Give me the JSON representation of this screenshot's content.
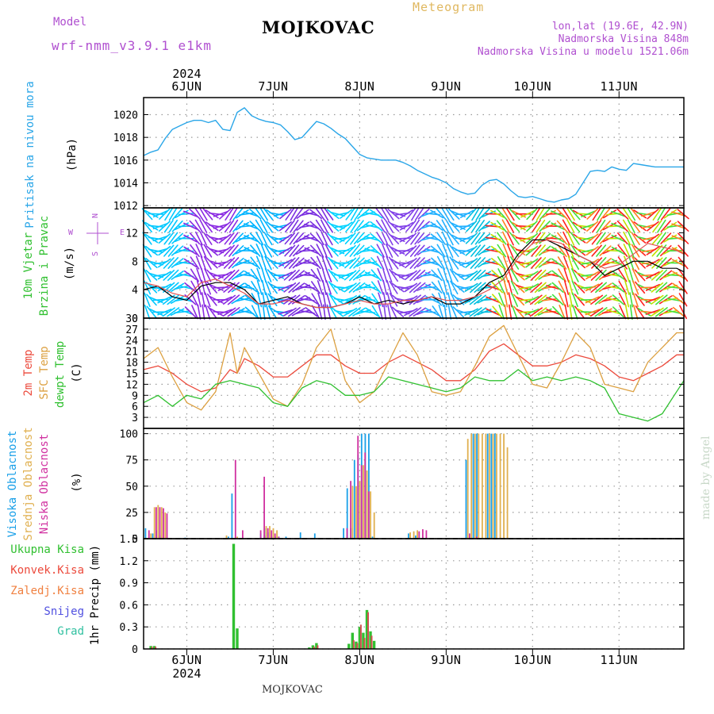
{
  "header": {
    "model_label": "Model",
    "model_name": "wrf-nmm_v3.9.1  e1km",
    "title": "MOJKOVAC",
    "meteogram_label": "Meteogram",
    "lonlat": "lon,lat (19.6E, 42.9N)",
    "elevation": "Nadmorska Visina 848m",
    "model_elevation": "Nadmorska Visina u modelu 1521.06m"
  },
  "footer": {
    "place": "MOJKOVAC",
    "watermark": "made by Angel"
  },
  "time_axis": {
    "year": "2024",
    "days": [
      "6JUN",
      "7JUN",
      "8JUN",
      "9JUN",
      "10JUN",
      "11JUN"
    ],
    "hours_per_day": 24,
    "range_hours": [
      -12,
      138
    ]
  },
  "chart_data": [
    {
      "id": "pressure",
      "type": "line",
      "ylabel_title": "Pritisak na nivou mora",
      "unit": "(hPa)",
      "ylim": [
        1011.8,
        1021.5
      ],
      "yticks": [
        1012,
        1014,
        1016,
        1018,
        1020
      ],
      "grid": true,
      "series": [
        {
          "color": "#2aa6e8",
          "x": [
            -12,
            -10,
            -8,
            -6,
            -4,
            -2,
            0,
            2,
            4,
            6,
            8,
            10,
            12,
            14,
            16,
            18,
            20,
            22,
            24,
            26,
            28,
            30,
            32,
            34,
            36,
            38,
            40,
            42,
            44,
            46,
            48,
            50,
            52,
            54,
            56,
            58,
            60,
            62,
            64,
            66,
            68,
            70,
            72,
            74,
            76,
            78,
            80,
            82,
            84,
            86,
            88,
            90,
            92,
            94,
            96,
            98,
            100,
            102,
            104,
            106,
            108,
            110,
            112,
            114,
            116,
            118,
            120,
            122,
            124,
            126,
            128,
            130,
            132,
            134,
            136,
            138
          ],
          "y": [
            1016.4,
            1016.7,
            1016.9,
            1017.9,
            1018.7,
            1019.0,
            1019.3,
            1019.5,
            1019.5,
            1019.3,
            1019.5,
            1018.7,
            1018.6,
            1020.2,
            1020.6,
            1019.9,
            1019.6,
            1019.4,
            1019.3,
            1019.1,
            1018.5,
            1017.8,
            1018.0,
            1018.7,
            1019.4,
            1019.2,
            1018.8,
            1018.3,
            1017.9,
            1017.2,
            1016.5,
            1016.2,
            1016.1,
            1016.0,
            1016.0,
            1016.0,
            1015.8,
            1015.5,
            1015.1,
            1014.8,
            1014.5,
            1014.3,
            1014.0,
            1013.5,
            1013.2,
            1013.0,
            1013.1,
            1013.8,
            1014.2,
            1014.3,
            1013.9,
            1013.3,
            1012.8,
            1012.7,
            1012.8,
            1012.6,
            1012.4,
            1012.3,
            1012.5,
            1012.6,
            1013.0,
            1014.0,
            1015.0,
            1015.1,
            1015.0,
            1015.4,
            1015.2,
            1015.1,
            1015.7,
            1015.6,
            1015.5,
            1015.4,
            1015.4,
            1015.4,
            1015.4,
            1015.4
          ]
        }
      ]
    },
    {
      "id": "wind",
      "type": "line",
      "ylabel_title": "10m Vjetar",
      "ylabel_title2": "Brzina i Pravac",
      "unit": "(m/s)",
      "compass_ns": "N",
      "compass_s": "S",
      "compass_w": "W",
      "compass_e": "E",
      "ylim": [
        0,
        15.5
      ],
      "yticks": [
        0,
        4,
        8,
        12
      ],
      "grid": true,
      "series": [
        {
          "name": "speed",
          "color": "#000000",
          "x": [
            -12,
            -8,
            -4,
            0,
            4,
            8,
            12,
            16,
            20,
            24,
            28,
            32,
            36,
            40,
            44,
            48,
            52,
            56,
            60,
            64,
            68,
            72,
            76,
            80,
            84,
            88,
            92,
            96,
            100,
            104,
            108,
            112,
            116,
            120,
            124,
            128,
            132,
            136,
            138
          ],
          "y": [
            4.0,
            4.5,
            3.0,
            2.5,
            4.5,
            5.0,
            5.0,
            4.0,
            2.0,
            2.5,
            3.0,
            2.0,
            1.5,
            1.5,
            2.0,
            3.0,
            2.0,
            2.5,
            2.0,
            2.5,
            3.0,
            2.0,
            2.0,
            3.0,
            5.0,
            6.0,
            9.0,
            11.0,
            11.0,
            10.0,
            9.0,
            8.0,
            6.0,
            7.0,
            8.0,
            8.0,
            7.0,
            7.0,
            6.5
          ]
        },
        {
          "name": "gust",
          "color": "#e05050",
          "x": [
            -12,
            -8,
            -4,
            0,
            4,
            8,
            12,
            16,
            20,
            24,
            28,
            32,
            36,
            40,
            44,
            48,
            52,
            56,
            60,
            64,
            68,
            72,
            76,
            80,
            84,
            88,
            92,
            96,
            100,
            104,
            108,
            112,
            116,
            120,
            124,
            128,
            132,
            136,
            138
          ],
          "y": [
            5.0,
            4.5,
            3.5,
            3.0,
            5.0,
            5.5,
            4.5,
            3.5,
            2.0,
            2.0,
            2.5,
            2.0,
            1.5,
            1.5,
            2.0,
            2.5,
            2.0,
            2.0,
            2.5,
            2.5,
            3.0,
            2.5,
            2.5,
            3.0,
            4.0,
            5.5,
            8.5,
            10.5,
            11.0,
            10.5,
            9.0,
            8.0,
            7.0,
            7.5,
            9.0,
            10.5,
            10.0,
            9.5,
            9.0
          ]
        }
      ],
      "barb_spectrum": [
        "#00c8ff",
        "#8a2be2",
        "#00b4ff",
        "#7a30e0",
        "#00d2ff",
        "#8040e8",
        "#20b0ff",
        "#00c0e0",
        "#ff8020",
        "#ff2020",
        "#c0e000",
        "#40e040"
      ]
    },
    {
      "id": "temperature",
      "type": "line",
      "ylabel_t2m": "2m Temp",
      "ylabel_sfc": "SFC Temp",
      "ylabel_dew": "dewpt Temp",
      "unit": "(C)",
      "ylim": [
        0,
        30
      ],
      "yticks": [
        3,
        6,
        9,
        12,
        15,
        18,
        21,
        24,
        27,
        30
      ],
      "grid": true,
      "series": [
        {
          "name": "2m Temp",
          "color": "#ec4a3c",
          "x": [
            -12,
            -8,
            -4,
            0,
            4,
            8,
            12,
            14,
            16,
            20,
            24,
            28,
            32,
            36,
            40,
            44,
            48,
            52,
            56,
            60,
            64,
            68,
            72,
            76,
            80,
            84,
            88,
            92,
            96,
            100,
            104,
            108,
            112,
            116,
            120,
            124,
            128,
            132,
            136,
            138
          ],
          "y": [
            16,
            17,
            15,
            12,
            10,
            11,
            16,
            15,
            19,
            17,
            14,
            14,
            17,
            20,
            20,
            17,
            15,
            15,
            18,
            20,
            18,
            16,
            13,
            13,
            16,
            21,
            23,
            20,
            17,
            17,
            18,
            20,
            19,
            17,
            14,
            13,
            15,
            17,
            20,
            20
          ]
        },
        {
          "name": "SFC Temp",
          "color": "#dca040",
          "x": [
            -12,
            -8,
            -4,
            0,
            4,
            8,
            12,
            14,
            16,
            20,
            24,
            28,
            32,
            36,
            40,
            44,
            48,
            52,
            56,
            60,
            64,
            68,
            72,
            76,
            80,
            84,
            88,
            92,
            96,
            100,
            104,
            108,
            112,
            116,
            120,
            124,
            128,
            132,
            136,
            138
          ],
          "y": [
            19,
            22,
            14,
            7,
            5,
            10,
            26,
            15,
            22,
            15,
            8,
            6,
            12,
            22,
            27,
            13,
            7,
            10,
            18,
            26,
            20,
            10,
            9,
            10,
            17,
            25,
            28,
            20,
            12,
            11,
            18,
            26,
            22,
            12,
            11,
            10,
            18,
            22,
            26,
            26
          ]
        },
        {
          "name": "dewpt Temp",
          "color": "#30c030",
          "x": [
            -12,
            -8,
            -4,
            0,
            4,
            8,
            12,
            16,
            20,
            24,
            28,
            32,
            36,
            40,
            44,
            48,
            52,
            56,
            60,
            64,
            68,
            72,
            76,
            80,
            84,
            88,
            92,
            96,
            100,
            104,
            108,
            112,
            116,
            120,
            124,
            128,
            132,
            136,
            138
          ],
          "y": [
            7,
            9,
            6,
            9,
            8,
            12,
            13,
            12,
            11,
            7,
            6,
            11,
            13,
            12,
            9,
            9,
            10,
            14,
            13,
            12,
            11,
            10,
            11,
            14,
            13,
            13,
            16,
            13,
            14,
            13,
            14,
            13,
            11,
            4,
            3,
            2,
            4,
            10,
            13
          ]
        }
      ]
    },
    {
      "id": "clouds",
      "type": "bar",
      "ylabel_high": "Visoka Oblacnost",
      "ylabel_mid": "Srednja Oblacnost",
      "ylabel_low": "Niska Oblacnost",
      "unit": "(%)",
      "ylim": [
        0,
        105
      ],
      "yticks": [
        0,
        25,
        50,
        75,
        100
      ],
      "grid": true,
      "series": [
        {
          "name": "Visoka Oblacnost",
          "color": "#1aa0e8",
          "x": [
            -11,
            -9,
            -8,
            -7,
            0,
            12,
            13,
            21,
            22,
            22,
            22,
            23,
            24,
            25,
            26,
            28,
            32,
            36,
            44,
            45,
            46,
            47,
            48,
            49,
            50,
            51,
            52,
            62,
            64,
            78,
            80,
            81,
            84,
            85,
            86
          ],
          "y": [
            10,
            5,
            8,
            3,
            1,
            2,
            43,
            5,
            10,
            2,
            3,
            6,
            2,
            2,
            2,
            2,
            6,
            5,
            10,
            48,
            10,
            75,
            80,
            100,
            100,
            100,
            2,
            5,
            3,
            75,
            100,
            100,
            100,
            100,
            100
          ]
        },
        {
          "name": "Srednja Oblacnost",
          "color": "#e0b050",
          "x": [
            -10,
            -9,
            -8,
            -7,
            -6,
            11,
            14,
            22,
            23,
            24,
            25,
            46,
            47,
            48,
            49,
            50,
            51,
            52,
            62,
            63,
            64,
            78,
            79,
            80,
            81,
            82,
            83,
            84,
            85,
            86,
            87,
            88,
            89
          ],
          "y": [
            5,
            30,
            32,
            30,
            25,
            3,
            2,
            12,
            12,
            10,
            8,
            50,
            50,
            55,
            70,
            65,
            45,
            25,
            6,
            7,
            8,
            95,
            100,
            100,
            100,
            100,
            100,
            100,
            100,
            100,
            100,
            100,
            87
          ]
        },
        {
          "name": "Niska Oblacnost",
          "color": "#d030a0",
          "x": [
            -11,
            -9,
            -8,
            -7,
            -6,
            13,
            15,
            20,
            21,
            22,
            23,
            24,
            25,
            44,
            45,
            47,
            48,
            49,
            50,
            64,
            65,
            66,
            78,
            80
          ],
          "y": [
            8,
            30,
            30,
            29,
            24,
            75,
            8,
            8,
            59,
            10,
            8,
            5,
            2,
            10,
            55,
            98,
            70,
            82,
            45,
            7,
            9,
            8,
            5,
            2
          ]
        }
      ]
    },
    {
      "id": "precip",
      "type": "bar",
      "ylabel_total": "Ukupna Kisa",
      "ylabel_conv": "Konvek.Kisa",
      "ylabel_frozen": "Zaledj.Kisa",
      "ylabel_snow": "Snijeg",
      "ylabel_grad": "Grad",
      "unit": "1hr Precip (mm)",
      "ylim": [
        0,
        1.5
      ],
      "yticks": [
        0,
        0.3,
        0.6,
        0.9,
        1.2,
        1.5
      ],
      "grid": true,
      "series": [
        {
          "name": "Ukupna Kisa",
          "color": "#30c030",
          "x": [
            -10,
            -9,
            13,
            14,
            34,
            35,
            36,
            45,
            46,
            47,
            48,
            49,
            50,
            51,
            52
          ],
          "y": [
            0.04,
            0.04,
            1.43,
            0.28,
            0.02,
            0.05,
            0.08,
            0.07,
            0.22,
            0.1,
            0.3,
            0.22,
            0.53,
            0.24,
            0.11
          ]
        },
        {
          "name": "Konvek.Kisa",
          "color": "#d05050",
          "x": [
            -10,
            -9,
            35,
            36,
            46,
            47,
            48,
            49,
            50,
            51
          ],
          "y": [
            0.03,
            0.03,
            0.03,
            0.05,
            0.12,
            0.08,
            0.33,
            0.15,
            0.5,
            0.18
          ]
        }
      ]
    }
  ]
}
